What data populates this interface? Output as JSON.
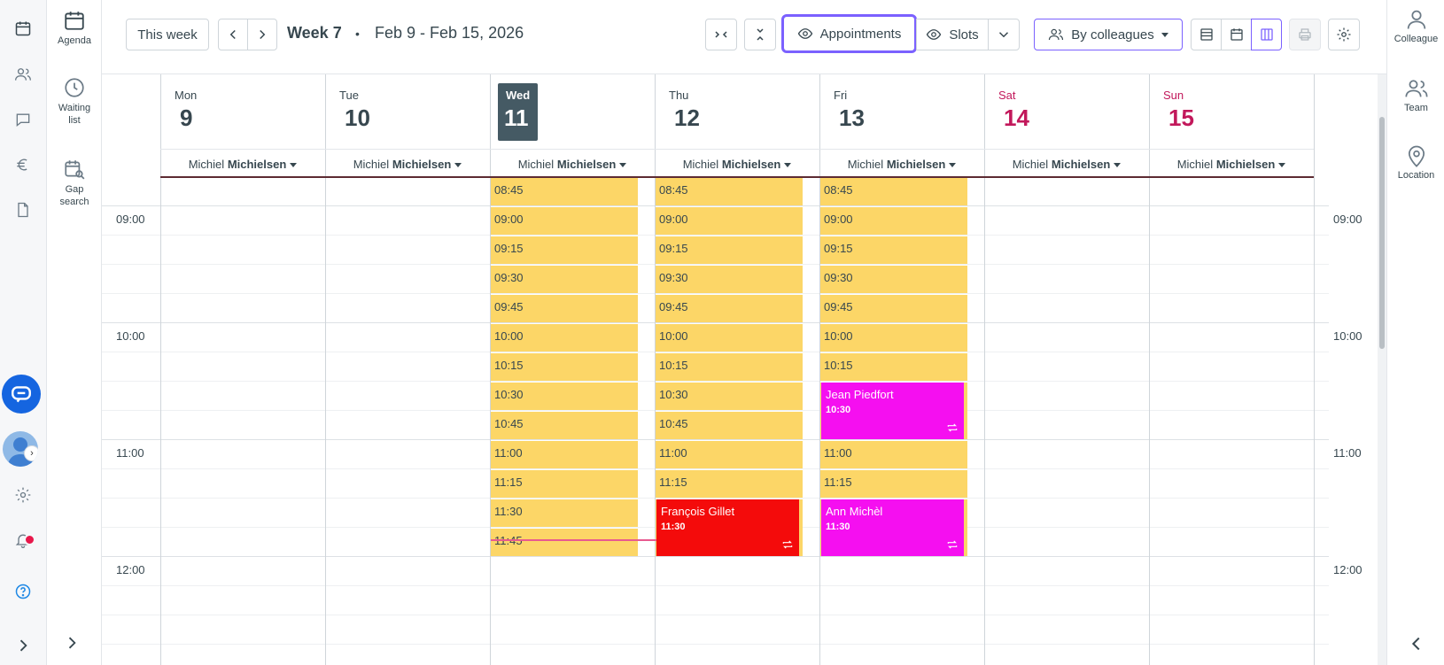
{
  "toolbar": {
    "this_week": "This week",
    "week_label": "Week 7",
    "separator": "•",
    "date_range": "Feb 9 - Feb 15, 2026",
    "appointments_label": "Appointments",
    "slots_label": "Slots",
    "colleagues_label": "By colleagues"
  },
  "side2": {
    "agenda": "Agenda",
    "waiting_line1": "Waiting",
    "waiting_line2": "list",
    "gap_line1": "Gap",
    "gap_line2": "search"
  },
  "side3": {
    "colleague": "Colleague",
    "team": "Team",
    "location": "Location"
  },
  "days": [
    {
      "name": "Mon",
      "num": "9"
    },
    {
      "name": "Tue",
      "num": "10"
    },
    {
      "name": "Wed",
      "num": "11"
    },
    {
      "name": "Thu",
      "num": "12"
    },
    {
      "name": "Fri",
      "num": "13"
    },
    {
      "name": "Sat",
      "num": "14"
    },
    {
      "name": "Sun",
      "num": "15"
    }
  ],
  "colleague": {
    "first": "Michiel",
    "last": "Michielsen"
  },
  "hours": [
    "09:00",
    "10:00",
    "11:00",
    "12:00"
  ],
  "slots": {
    "wed": [
      "08:45",
      "09:00",
      "09:15",
      "09:30",
      "09:45",
      "10:00",
      "10:15",
      "10:30",
      "10:45",
      "11:00",
      "11:15",
      "11:30",
      "11:45"
    ],
    "thu": [
      "08:45",
      "09:00",
      "09:15",
      "09:30",
      "09:45",
      "10:00",
      "10:15",
      "10:30",
      "10:45",
      "11:00",
      "11:15"
    ],
    "fri": [
      "08:45",
      "09:00",
      "09:15",
      "09:30",
      "09:45",
      "10:00",
      "10:15",
      "11:00",
      "11:15"
    ]
  },
  "appointments": [
    {
      "name": "Jean Piedfort",
      "time": "10:30",
      "color": "#f50ff0"
    },
    {
      "name": "François Gillet",
      "time": "11:30",
      "color": "#f40b0b"
    },
    {
      "name": "Ann Michèl",
      "time": "11:30",
      "color": "#f50ff0"
    }
  ],
  "colors": {
    "slot": "#fcd667",
    "accent": "#7b61ff",
    "weekend": "#c2185b",
    "today_bg": "#455a64"
  }
}
